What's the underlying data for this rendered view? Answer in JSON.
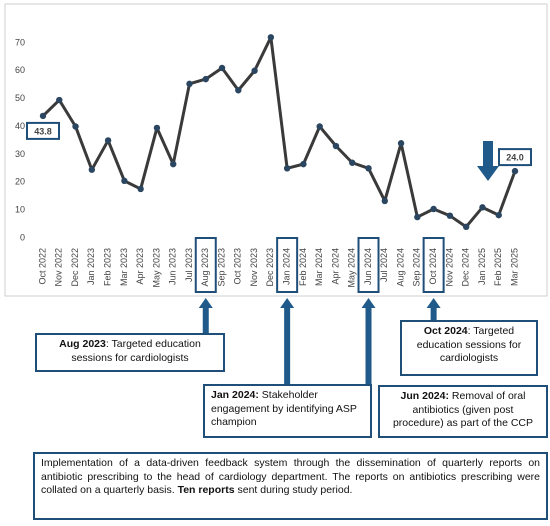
{
  "chart_data": {
    "type": "line",
    "categories": [
      "Oct 2022",
      "Nov 2022",
      "Dec 2022",
      "Jan 2023",
      "Feb 2023",
      "Mar 2023",
      "Apr 2023",
      "May 2023",
      "Jun 2023",
      "Jul 2023",
      "Aug 2023",
      "Sep 2023",
      "Oct 2023",
      "Nov 2023",
      "Dec 2023",
      "Jan 2024",
      "Feb 2024",
      "Mar 2024",
      "Apr 2024",
      "May 2024",
      "Jun 2024",
      "Jul 2024",
      "Aug 2024",
      "Sep 2024",
      "Oct 2024",
      "Nov 2024",
      "Dec 2024",
      "Jan 2025",
      "Feb 2025",
      "Mar 2025"
    ],
    "values": [
      43.8,
      49.5,
      40,
      24.5,
      35,
      20.5,
      17.6,
      39.5,
      26.5,
      55.3,
      57,
      61,
      53,
      60,
      72,
      25,
      26.5,
      40,
      33,
      27,
      25,
      13.3,
      34,
      7.5,
      10.4,
      8,
      4,
      11,
      8.2,
      24
    ],
    "value_labels": [
      "43.8",
      null,
      null,
      null,
      null,
      null,
      null,
      null,
      null,
      null,
      null,
      null,
      null,
      null,
      null,
      null,
      null,
      null,
      null,
      null,
      null,
      null,
      null,
      null,
      null,
      null,
      null,
      null,
      null,
      "24.0"
    ],
    "line_color": "#3a3a3a",
    "marker_color": "#2b4660",
    "highlight_color": "#1f4e79",
    "ylim": [
      0,
      80
    ],
    "yticks": [
      0,
      10,
      20,
      30,
      40,
      50,
      60,
      70
    ],
    "grid": false,
    "annotations": [
      {
        "segments": [
          {
            "text": "Aug 2023",
            "bold": true
          },
          {
            "text": ": Targeted education sessions for cardiologists"
          }
        ]
      },
      {
        "segments": [
          {
            "text": "Jan 2024:",
            "bold": true
          },
          {
            "text": " Stakeholder engagement by identifying ASP champion"
          }
        ]
      },
      {
        "segments": [
          {
            "text": "Jun 2024:",
            "bold": true
          },
          {
            "text": " Removal of oral antibiotics (given post procedure) as part of the CCP"
          }
        ]
      },
      {
        "segments": [
          {
            "text": "Oct 2024",
            "bold": true
          },
          {
            "text": ": Targeted education sessions for cardiologists"
          }
        ]
      },
      {
        "segments": [
          {
            "text": "Implementation of a data-driven feedback system through the dissemination of quarterly reports on antibiotic prescribing to the head of cardiology department. The reports on antibiotics prescribing were collated on a quarterly basis. "
          },
          {
            "text": "Ten reports",
            "bold": true
          },
          {
            "text": " sent during study period."
          }
        ]
      }
    ]
  }
}
